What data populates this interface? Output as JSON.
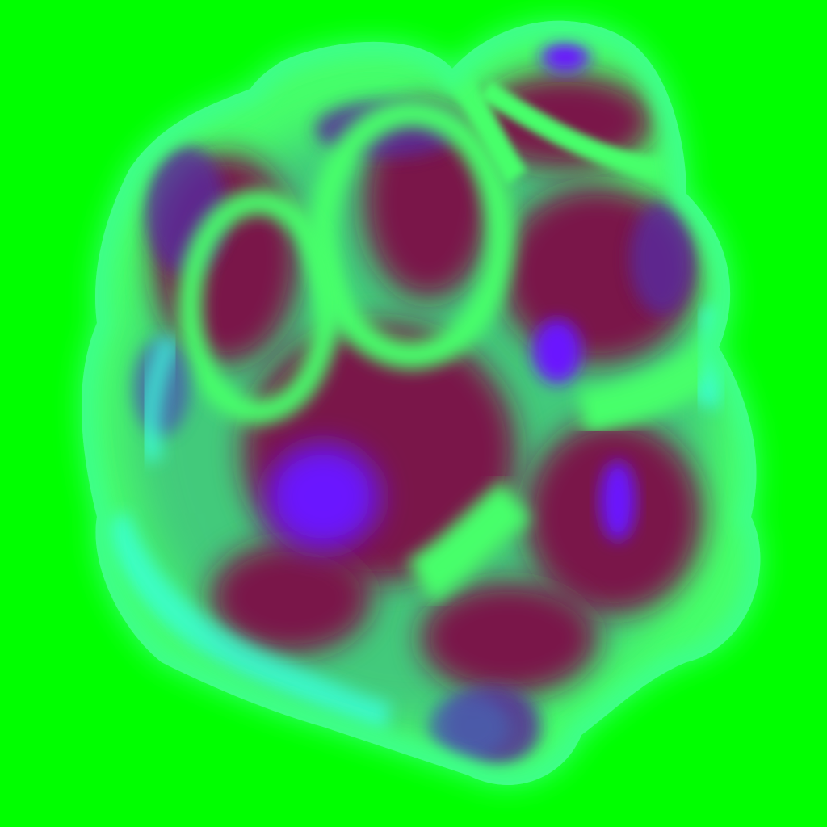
{
  "colors": {
    "background": "#00ff00",
    "rim_glow": "#3dff86",
    "cyan_highlight": "#3affe0",
    "inner_green": "#46ff6a",
    "teal_shadow": "#3f9f8a",
    "maroon_core": "#7a1648",
    "violet_core": "#6a14ff",
    "purple_mid": "#5a2a9a",
    "slate_blue": "#4a5fae"
  }
}
